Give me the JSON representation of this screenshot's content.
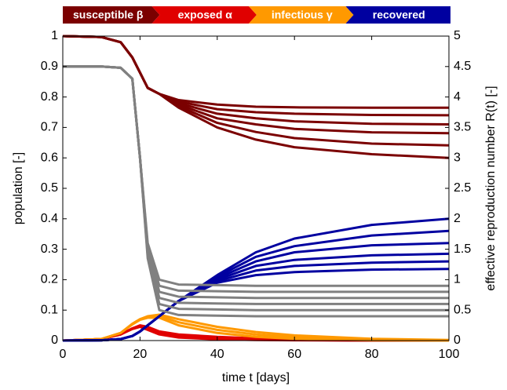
{
  "chart_data": {
    "type": "line",
    "x_label": "time t [days]",
    "y_label": "population [-]",
    "y2_label": "effective reproduction number R(t) [-]",
    "x": [
      0,
      10,
      15,
      18,
      20,
      22,
      25,
      30,
      40,
      50,
      60,
      80,
      100
    ],
    "xlim": [
      0,
      100
    ],
    "xticks": [
      0,
      20,
      40,
      60,
      80,
      100
    ],
    "ylim": [
      0,
      1
    ],
    "yticks": [
      0,
      0.1,
      0.2,
      0.3,
      0.4,
      0.5,
      0.6,
      0.7,
      0.8,
      0.9,
      1
    ],
    "y2lim": [
      0,
      5
    ],
    "y2ticks": [
      0,
      0.5,
      1,
      1.5,
      2,
      2.5,
      3,
      3.5,
      4,
      4.5,
      5
    ],
    "grid": false,
    "series": [
      {
        "name": "susceptible β",
        "color": "#7b0000",
        "lines": [
          [
            1,
            0.997,
            0.98,
            0.93,
            0.88,
            0.83,
            0.81,
            0.79,
            0.775,
            0.768,
            0.766,
            0.765,
            0.765
          ],
          [
            1,
            0.997,
            0.98,
            0.93,
            0.88,
            0.83,
            0.81,
            0.785,
            0.76,
            0.75,
            0.745,
            0.741,
            0.74
          ],
          [
            1,
            0.997,
            0.98,
            0.93,
            0.88,
            0.83,
            0.81,
            0.78,
            0.745,
            0.73,
            0.72,
            0.712,
            0.71
          ],
          [
            1,
            0.997,
            0.98,
            0.93,
            0.88,
            0.83,
            0.81,
            0.775,
            0.73,
            0.71,
            0.695,
            0.684,
            0.681
          ],
          [
            1,
            0.997,
            0.98,
            0.93,
            0.88,
            0.83,
            0.81,
            0.77,
            0.715,
            0.685,
            0.665,
            0.647,
            0.641
          ],
          [
            1,
            0.997,
            0.98,
            0.93,
            0.88,
            0.83,
            0.81,
            0.765,
            0.7,
            0.66,
            0.635,
            0.612,
            0.6
          ]
        ]
      },
      {
        "name": "exposed α",
        "color": "#e00000",
        "lines": [
          [
            0,
            0.005,
            0.02,
            0.04,
            0.05,
            0.045,
            0.03,
            0.02,
            0.012,
            0.007,
            0.004,
            0.001,
            0
          ],
          [
            0,
            0.005,
            0.02,
            0.04,
            0.048,
            0.04,
            0.025,
            0.015,
            0.008,
            0.004,
            0.002,
            0,
            0
          ],
          [
            0,
            0.005,
            0.02,
            0.038,
            0.045,
            0.035,
            0.02,
            0.01,
            0.004,
            0.002,
            0.001,
            0,
            0
          ]
        ]
      },
      {
        "name": "infectious γ",
        "color": "#ff9900",
        "lines": [
          [
            0,
            0.005,
            0.025,
            0.055,
            0.07,
            0.08,
            0.085,
            0.07,
            0.045,
            0.028,
            0.017,
            0.006,
            0.002
          ],
          [
            0,
            0.005,
            0.025,
            0.055,
            0.07,
            0.078,
            0.08,
            0.06,
            0.035,
            0.02,
            0.011,
            0.003,
            0.001
          ],
          [
            0,
            0.005,
            0.025,
            0.053,
            0.068,
            0.075,
            0.075,
            0.05,
            0.025,
            0.012,
            0.006,
            0.001,
            0
          ]
        ]
      },
      {
        "name": "recovered",
        "color": "#0000a0",
        "lines": [
          [
            0,
            0.001,
            0.005,
            0.015,
            0.03,
            0.05,
            0.08,
            0.13,
            0.19,
            0.215,
            0.225,
            0.233,
            0.235
          ],
          [
            0,
            0.001,
            0.005,
            0.015,
            0.03,
            0.05,
            0.08,
            0.13,
            0.195,
            0.23,
            0.245,
            0.256,
            0.26
          ],
          [
            0,
            0.001,
            0.005,
            0.015,
            0.03,
            0.05,
            0.08,
            0.13,
            0.2,
            0.245,
            0.265,
            0.28,
            0.285
          ],
          [
            0,
            0.001,
            0.005,
            0.015,
            0.03,
            0.05,
            0.08,
            0.13,
            0.205,
            0.26,
            0.29,
            0.313,
            0.32
          ],
          [
            0,
            0.001,
            0.005,
            0.015,
            0.03,
            0.05,
            0.08,
            0.13,
            0.21,
            0.275,
            0.31,
            0.345,
            0.36
          ],
          [
            0,
            0.001,
            0.005,
            0.015,
            0.03,
            0.05,
            0.08,
            0.13,
            0.215,
            0.29,
            0.335,
            0.38,
            0.4
          ]
        ]
      },
      {
        "color": "#808080",
        "axis": "y2",
        "lines": [
          [
            4.5,
            4.5,
            4.48,
            4.3,
            3.0,
            1.6,
            1.0,
            0.92,
            0.91,
            0.9,
            0.9,
            0.9,
            0.9
          ],
          [
            4.5,
            4.5,
            4.48,
            4.3,
            3.0,
            1.55,
            0.9,
            0.82,
            0.81,
            0.8,
            0.8,
            0.8,
            0.8
          ],
          [
            4.5,
            4.5,
            4.48,
            4.3,
            3.0,
            1.5,
            0.8,
            0.72,
            0.71,
            0.7,
            0.7,
            0.7,
            0.7
          ],
          [
            4.5,
            4.5,
            4.48,
            4.3,
            3.0,
            1.45,
            0.7,
            0.62,
            0.61,
            0.6,
            0.6,
            0.6,
            0.6
          ],
          [
            4.5,
            4.5,
            4.48,
            4.3,
            3.0,
            1.4,
            0.6,
            0.52,
            0.51,
            0.5,
            0.5,
            0.5,
            0.5
          ],
          [
            4.5,
            4.5,
            4.48,
            4.3,
            3.0,
            1.35,
            0.5,
            0.42,
            0.41,
            0.4,
            0.4,
            0.4,
            0.4
          ]
        ]
      }
    ]
  }
}
